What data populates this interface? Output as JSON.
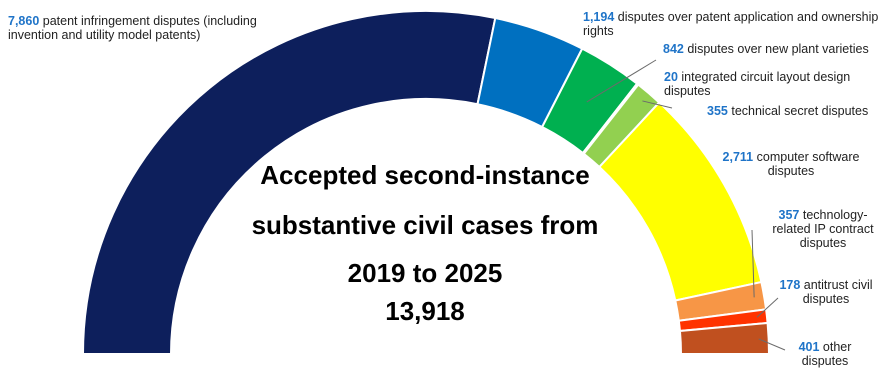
{
  "chart_data": {
    "type": "pie",
    "variant": "semi-donut",
    "title_lines": [
      "Accepted second-instance",
      "substantive civil cases from",
      "2019 to 2025"
    ],
    "total": "13,918",
    "slices": [
      {
        "value": 7860,
        "value_label": "7,860",
        "text": "patent infringement disputes (including invention and utility model patents)",
        "color": "#0d1f5c"
      },
      {
        "value": 1194,
        "value_label": "1,194",
        "text": "disputes over patent application and ownership rights",
        "color": "#0070c0"
      },
      {
        "value": 842,
        "value_label": "842",
        "text": "disputes over new plant varieties",
        "color": "#00b050"
      },
      {
        "value": 20,
        "value_label": "20",
        "text": "integrated circuit layout design disputes",
        "color": "#00b050"
      },
      {
        "value": 355,
        "value_label": "355",
        "text": "technical secret disputes",
        "color": "#92d050"
      },
      {
        "value": 2711,
        "value_label": "2,711",
        "text": "computer software disputes",
        "color": "#ffff00"
      },
      {
        "value": 357,
        "value_label": "357",
        "text": "technology-related IP contract disputes",
        "color": "#f79646"
      },
      {
        "value": 178,
        "value_label": "178",
        "text": "antitrust civil disputes",
        "color": "#ff3300"
      },
      {
        "value": 401,
        "value_label": "401",
        "text": "other disputes",
        "color": "#c0501f"
      }
    ]
  }
}
